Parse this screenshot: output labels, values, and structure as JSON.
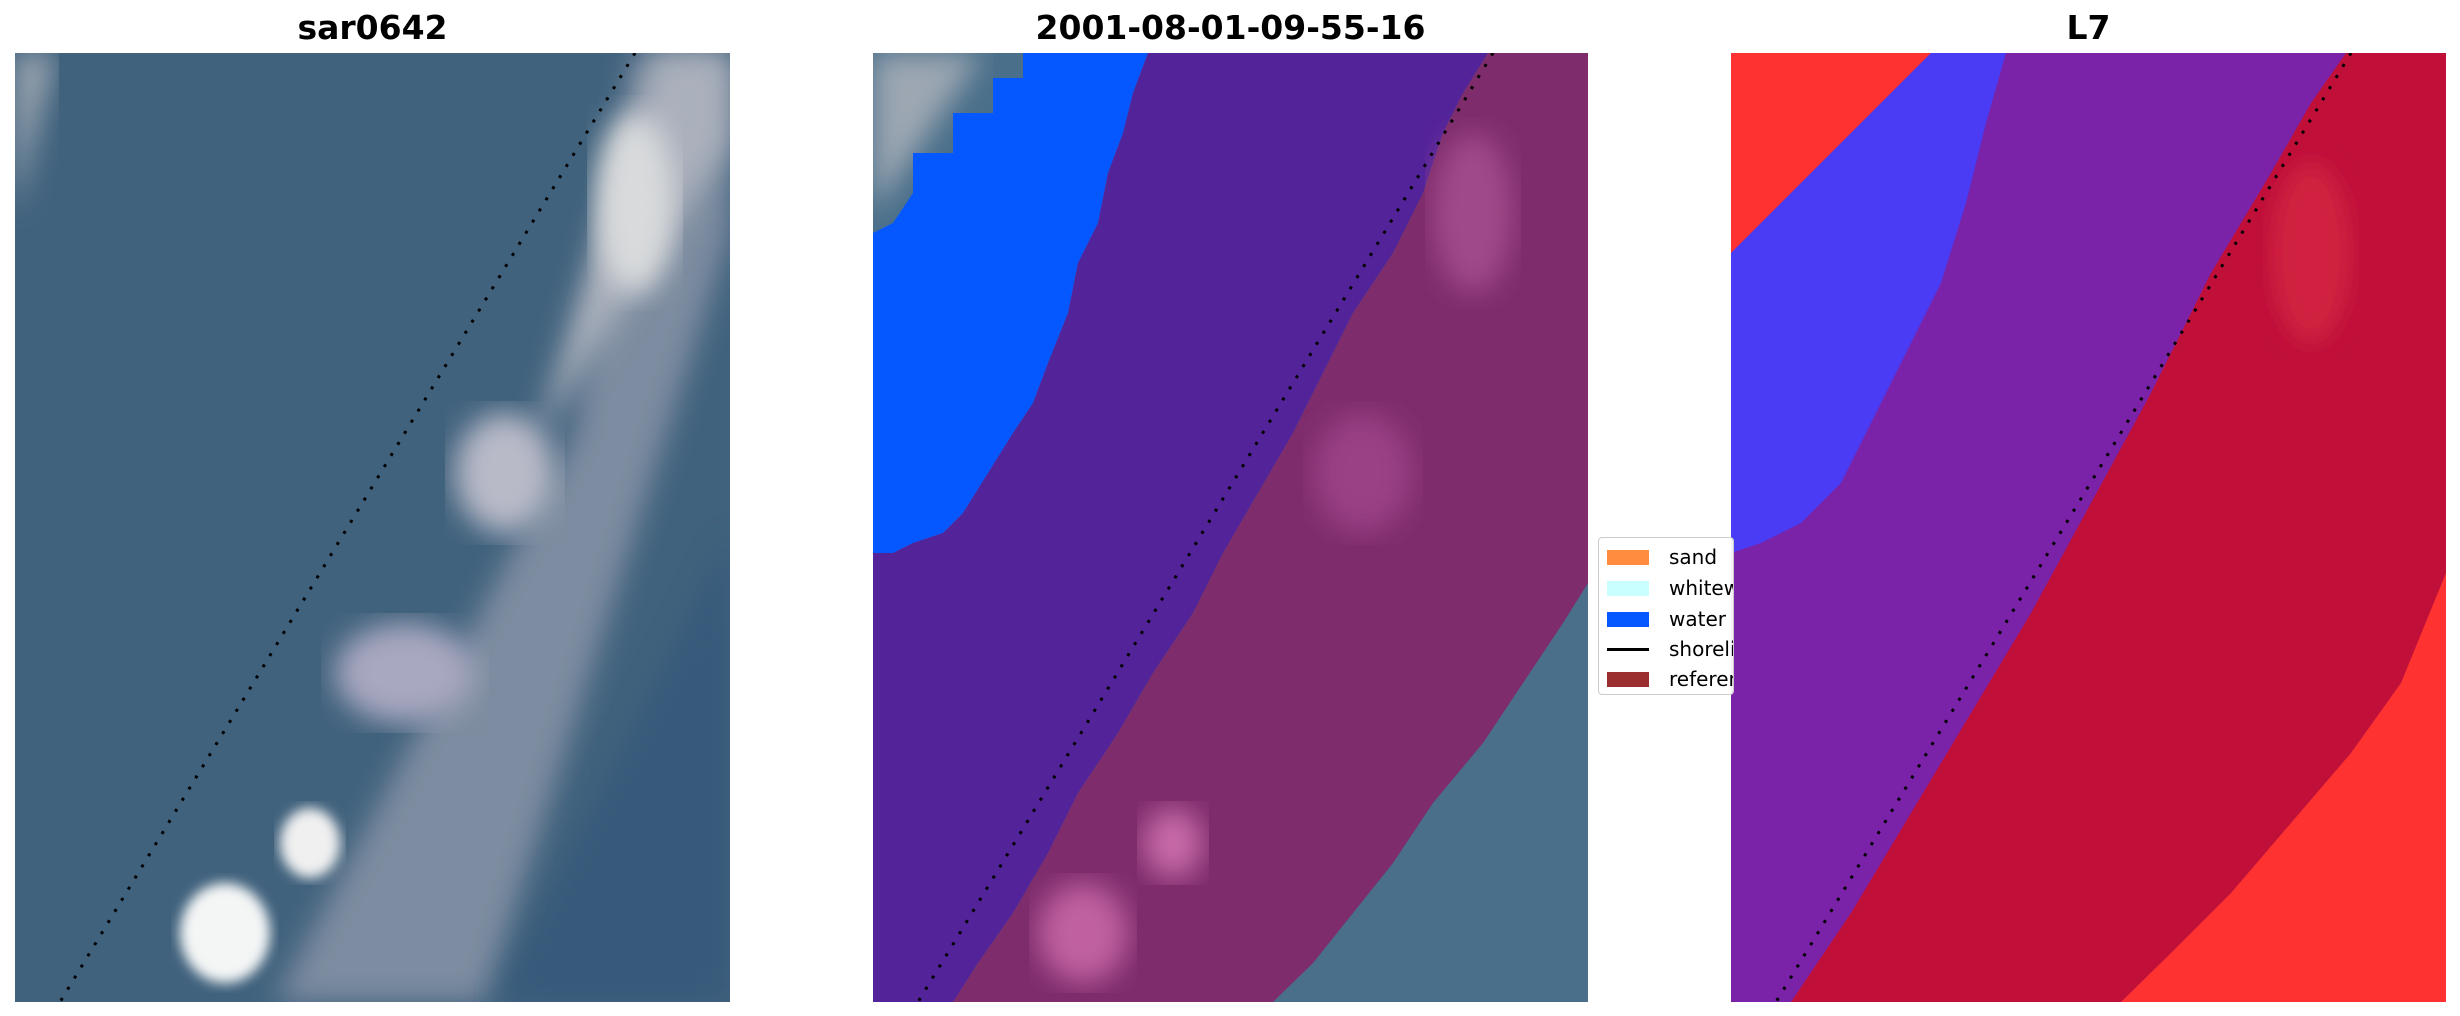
{
  "panels": [
    {
      "title": "sar0642"
    },
    {
      "title": "2001-08-01-09-55-16"
    },
    {
      "title": "L7"
    }
  ],
  "legend": {
    "items": [
      {
        "label": "sand",
        "color": "#ff8c3f",
        "kind": "patch"
      },
      {
        "label": "whitewater",
        "color": "#c9ffff",
        "kind": "patch"
      },
      {
        "label": "water",
        "color": "#0558ff",
        "kind": "patch"
      },
      {
        "label": "shoreline",
        "color": "#000000",
        "kind": "line"
      },
      {
        "label": "reference",
        "color": "#9b2e2e",
        "kind": "patch"
      }
    ]
  },
  "colors": {
    "sea": "#3f5f7a",
    "surf": "#b0b5c0",
    "water_class": "#0558ff",
    "land_class": "#53239a",
    "beach_overlay": "#82306e",
    "l7_water": "#4a3cf5",
    "l7_land": "#7a22a8",
    "l7_beach": "#c0103a",
    "l7_bright": "#ff3232"
  }
}
